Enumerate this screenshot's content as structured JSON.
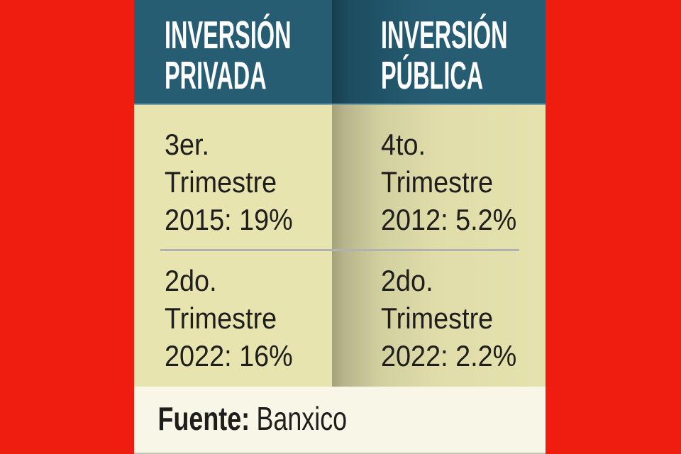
{
  "colors": {
    "background_red": "#ee1d10",
    "header_teal": "#275d73",
    "header_fold_shadow": "#163f4f",
    "body_khaki": "#e7e4b0",
    "body_fold_shadow": "#a5a27a",
    "footer_cream": "#f8f6e7",
    "text_dark": "#1e1e1c",
    "header_text_white": "#ffffff",
    "divider_gray": "#b1b1b1"
  },
  "columns": [
    {
      "header": "INVERSIÓN\nPRIVADA",
      "cells": [
        "3er.\nTrimestre\n2015: 19%",
        "2do.\nTrimestre\n2022: 16%"
      ]
    },
    {
      "header": "INVERSIÓN\nPÚBLICA",
      "cells": [
        "4to.\nTrimestre\n2012: 5.2%",
        "2do.\nTrimestre\n2022: 2.2%"
      ]
    }
  ],
  "footer": {
    "source_label": "Fuente:",
    "source_value": "Banxico"
  },
  "chart_data": {
    "type": "table",
    "columns": [
      "INVERSIÓN PRIVADA",
      "INVERSIÓN PÚBLICA"
    ],
    "rows": [
      [
        "3er. Trimestre 2015: 19%",
        "4to. Trimestre 2012: 5.2%"
      ],
      [
        "2do. Trimestre 2022: 16%",
        "2do. Trimestre 2022: 2.2%"
      ]
    ],
    "series": [
      {
        "name": "Inversión privada",
        "points": [
          {
            "period": "3er. Trimestre 2015",
            "value_pct": 19
          },
          {
            "period": "2do. Trimestre 2022",
            "value_pct": 16
          }
        ]
      },
      {
        "name": "Inversión pública",
        "points": [
          {
            "period": "4to. Trimestre 2012",
            "value_pct": 5.2
          },
          {
            "period": "2do. Trimestre 2022",
            "value_pct": 2.2
          }
        ]
      }
    ],
    "source": "Banxico"
  }
}
